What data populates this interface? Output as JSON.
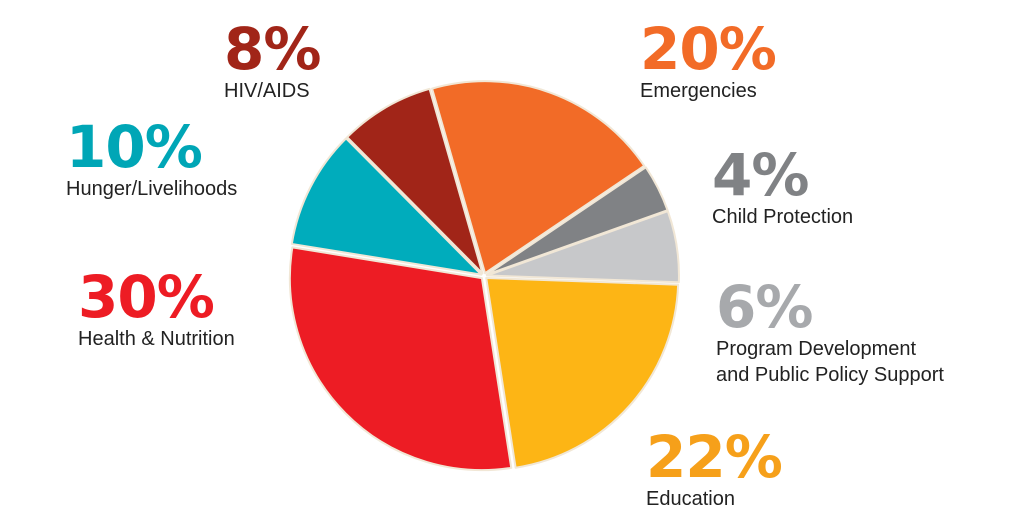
{
  "chart_data": {
    "type": "pie",
    "slices": [
      {
        "label": "Emergencies",
        "value": 20,
        "value_label": "20%",
        "color": "#F26B27",
        "text_color": "#F26B27"
      },
      {
        "label": "Child Protection",
        "value": 4,
        "value_label": "4%",
        "color": "#808285",
        "text_color": "#808285"
      },
      {
        "label": "Program Development and Public Policy Support",
        "label_lines": [
          "Program Development",
          "and Public Policy Support"
        ],
        "value": 6,
        "value_label": "6%",
        "color": "#C7C8CA",
        "text_color": "#A7A9AC"
      },
      {
        "label": "Education",
        "value": 22,
        "value_label": "22%",
        "color": "#FDB515",
        "text_color": "#F6A01A"
      },
      {
        "label": "Health & Nutrition",
        "value": 30,
        "value_label": "30%",
        "color": "#ED1C24",
        "text_color": "#ED1C24"
      },
      {
        "label": "Hunger/Livelihoods",
        "value": 10,
        "value_label": "10%",
        "color": "#00ACBC",
        "text_color": "#00A6B6"
      },
      {
        "label": "HIV/AIDS",
        "value": 8,
        "value_label": "8%",
        "color": "#A12518",
        "text_color": "#A12518"
      }
    ],
    "legend": "none",
    "slice_border_color": "#F1E7D6"
  }
}
